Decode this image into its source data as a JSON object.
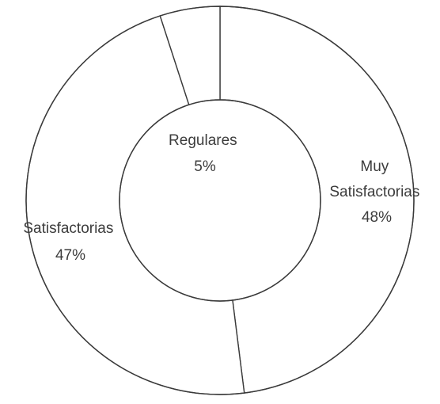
{
  "chart_data": {
    "type": "pie",
    "variant": "donut",
    "title": "",
    "slices": [
      {
        "label_lines": [
          "Muy",
          "Satisfactorias"
        ],
        "value": 48,
        "value_label": "48%"
      },
      {
        "label_lines": [
          "Satisfactorias"
        ],
        "value": 47,
        "value_label": "47%"
      },
      {
        "label_lines": [
          "Regulares"
        ],
        "value": 5,
        "value_label": "5%"
      }
    ],
    "start_angle_deg": 0,
    "direction": "clockwise",
    "legend": "none",
    "colors": {
      "fill": "#ffffff",
      "stroke": "#3a3a3a",
      "text": "#3c3c3c"
    }
  }
}
